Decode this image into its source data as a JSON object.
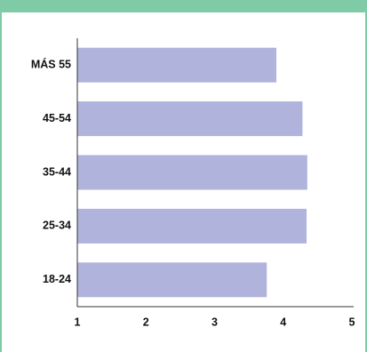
{
  "colors": {
    "band": "#7fcba8",
    "bar": "#b0b3dc",
    "axis": "#333333"
  },
  "chart_data": {
    "type": "bar",
    "orientation": "horizontal",
    "title": "",
    "xlabel": "",
    "ylabel": "",
    "categories": [
      "MÁS 55",
      "45-54",
      "35-44",
      "25-34",
      "18-24"
    ],
    "values": [
      3.9,
      4.28,
      4.35,
      4.34,
      3.76
    ],
    "xlim": [
      1,
      5
    ],
    "xticks": [
      "1",
      "2",
      "3",
      "4",
      "5"
    ],
    "grid": false,
    "legend": "none"
  }
}
